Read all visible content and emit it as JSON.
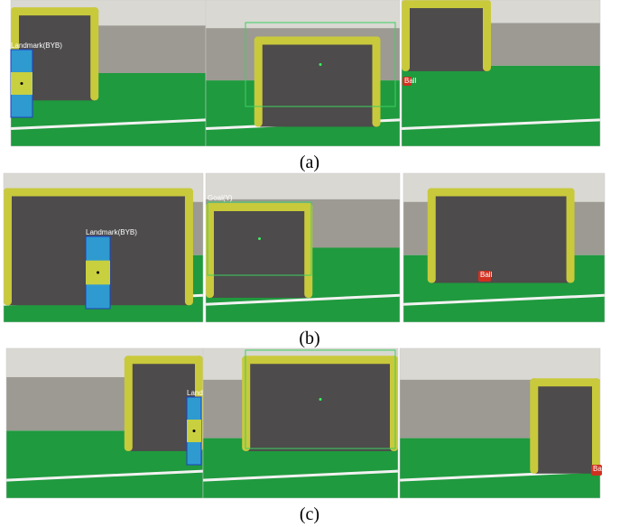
{
  "rows": [
    {
      "caption": "(a)",
      "panels": [
        [
          "Landmark(BYB)"
        ],
        [],
        [
          "Ball"
        ]
      ]
    },
    {
      "caption": "(b)",
      "panels": [
        [
          "Landmark(BYB)"
        ],
        [
          "Goal(Y)"
        ],
        [
          "Ball"
        ]
      ]
    },
    {
      "caption": "(c)",
      "panels": [
        [
          "Land"
        ],
        [],
        [
          "Bal"
        ]
      ]
    }
  ]
}
